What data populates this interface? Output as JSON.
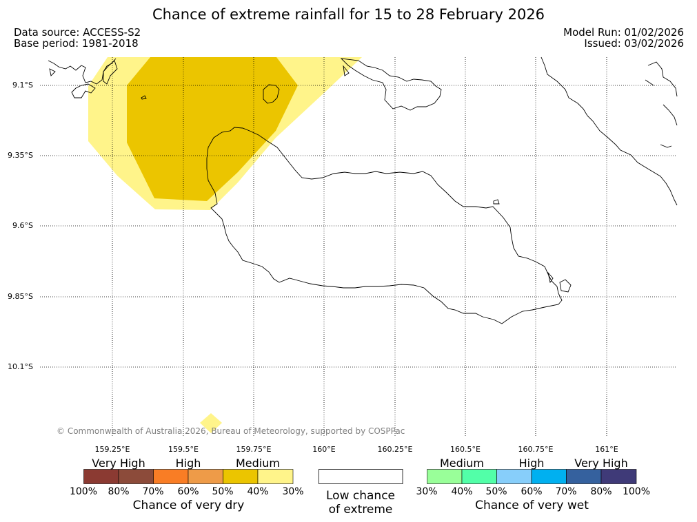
{
  "title": "Chance of extreme rainfall for 15 to 28 February 2026",
  "data_source": "Data source: ACCESS-S2",
  "base_period": "Base period: 1981-2018",
  "model_run": "Model Run: 01/02/2026",
  "issued": "Issued: 03/02/2026",
  "copyright": "© Commonwealth of Australia 2026, Bureau of Meteorology, supported by COSPPac",
  "axes": {
    "lat_labels": [
      "9.1°S",
      "9.35°S",
      "9.6°S",
      "9.85°S",
      "10.1°S"
    ],
    "lon_labels": [
      "159.25°E",
      "159.5°E",
      "159.75°E",
      "160°E",
      "160.25°E",
      "160.5°E",
      "160.75°E",
      "161°E"
    ]
  },
  "dry_legend": {
    "categories": [
      "Very High",
      "High",
      "Medium"
    ],
    "colors": [
      "#8b3a32",
      "#8c4b3a",
      "#f97d25",
      "#ee9b48",
      "#ebc500",
      "#fff48a"
    ],
    "ticks": [
      "100%",
      "80%",
      "70%",
      "60%",
      "50%",
      "40%",
      "30%"
    ],
    "title": "Chance of very dry"
  },
  "neutral_legend": {
    "line1": "Low chance",
    "line2": "of extreme",
    "color": "#ffffff"
  },
  "wet_legend": {
    "categories": [
      "Medium",
      "High",
      "Very High"
    ],
    "colors": [
      "#99ff99",
      "#52ffa8",
      "#87cefa",
      "#00b0f0",
      "#35619e",
      "#3f3a78"
    ],
    "ticks": [
      "30%",
      "40%",
      "50%",
      "60%",
      "70%",
      "80%",
      "100%"
    ],
    "title": "Chance of very wet"
  },
  "regions": [
    {
      "name": "medium-dry-outer-zone",
      "category": "Medium dry 30-40%",
      "color": "#fff48a"
    },
    {
      "name": "medium-dry-inner-zone",
      "category": "Medium dry 40-50%",
      "color": "#ebc500"
    },
    {
      "name": "medium-dry-south-patch",
      "category": "Medium dry 30-40%",
      "color": "#fff48a"
    }
  ]
}
